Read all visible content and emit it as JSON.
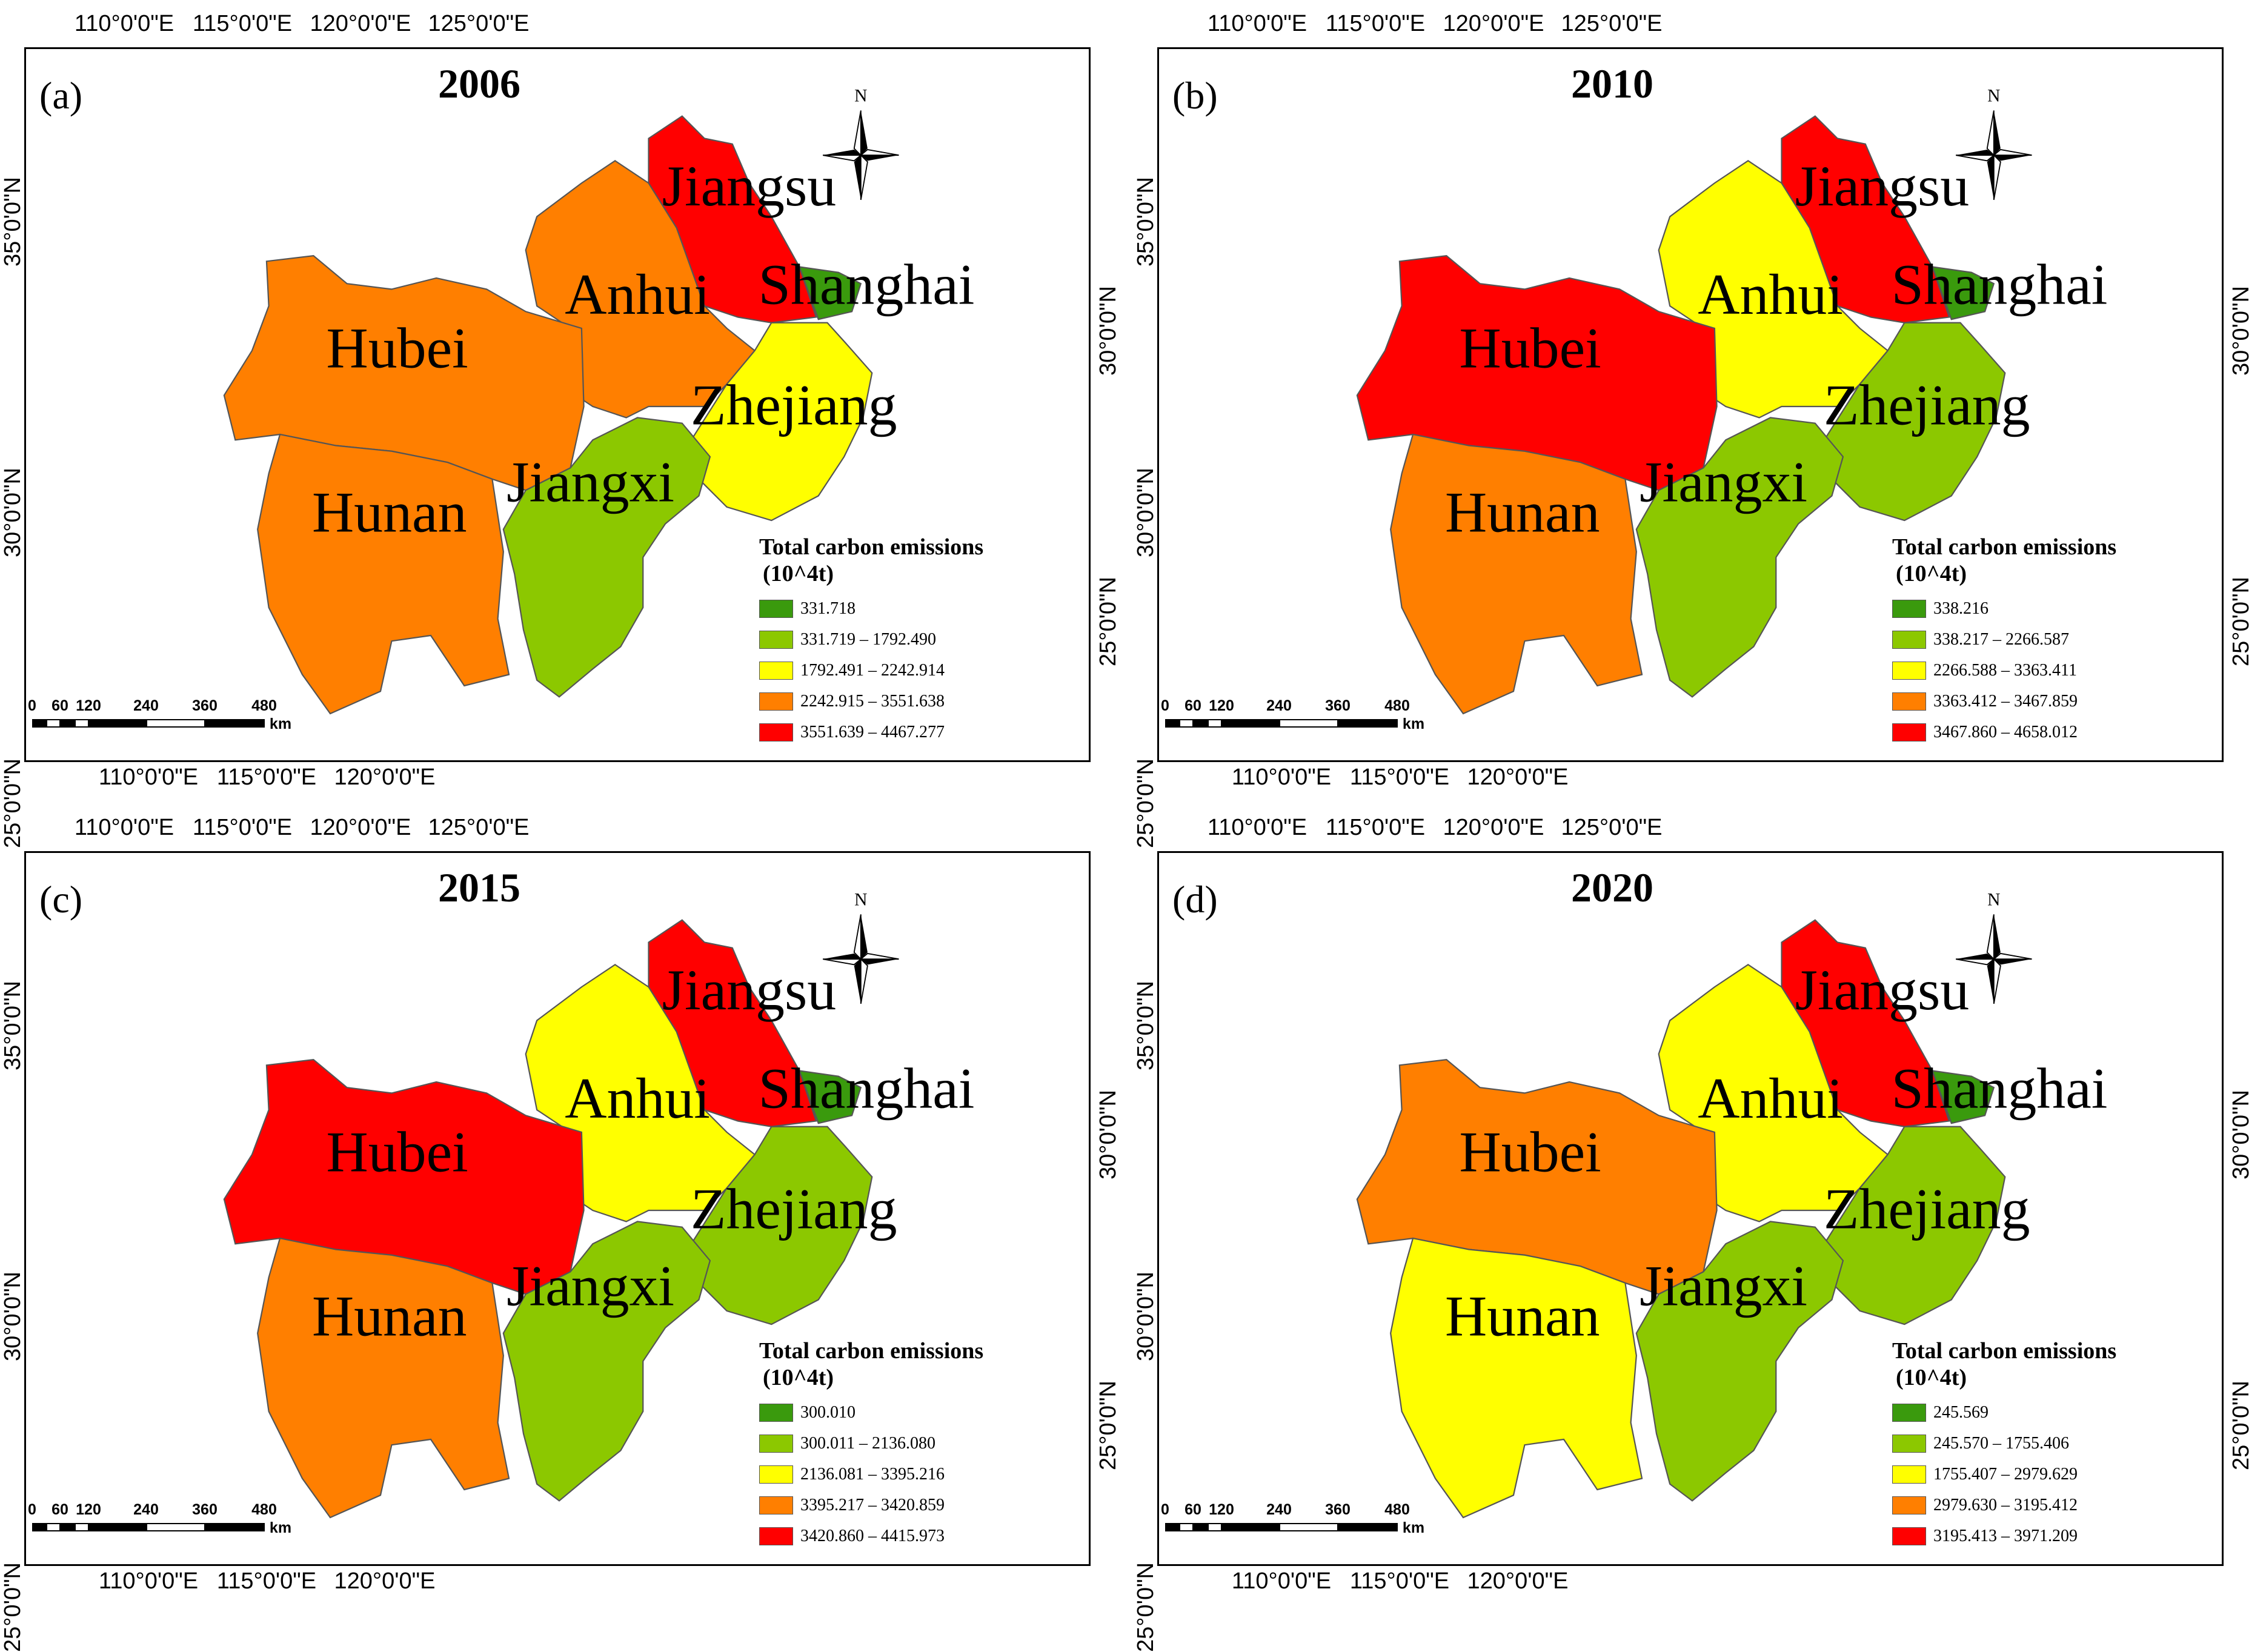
{
  "map_meta": {
    "compass_label": "N",
    "scale_labels": [
      "0",
      "60",
      "120",
      "240",
      "360",
      "480"
    ],
    "scale_unit": "km",
    "lon_ticks_top": [
      "110°0'0\"E",
      "115°0'0\"E",
      "120°0'0\"E",
      "125°0'0\"E"
    ],
    "lon_ticks_bottom": [
      "110°0'0\"E",
      "115°0'0\"E",
      "120°0'0\"E"
    ],
    "lat_ticks_left": [
      "35°0'0\"N",
      "30°0'0\"N",
      "25°0'0\"N"
    ],
    "lat_ticks_right": [
      "30°0'0\"N",
      "25°0'0\"N"
    ],
    "legend_title": "Total carbon emissions",
    "legend_unit": "(10^4t)",
    "class_colors": [
      "#3a9a0d",
      "#8cc800",
      "#ffff00",
      "#ff7f00",
      "#ff0000"
    ],
    "provinces": [
      "Jiangsu",
      "Shanghai",
      "Anhui",
      "Hubei",
      "Zhejiang",
      "Jiangxi",
      "Hunan"
    ]
  },
  "panels": [
    {
      "letter": "(a)",
      "year": "2006",
      "legend_ranges": [
        "331.718",
        "331.719 – 1792.490",
        "1792.491 – 2242.914",
        "2242.915 – 3551.638",
        "3551.639 – 4467.277"
      ],
      "province_class": {
        "Jiangsu": 4,
        "Shanghai": 0,
        "Anhui": 3,
        "Hubei": 3,
        "Zhejiang": 2,
        "Jiangxi": 1,
        "Hunan": 3
      }
    },
    {
      "letter": "(b)",
      "year": "2010",
      "legend_ranges": [
        "338.216",
        "338.217 – 2266.587",
        "2266.588 – 3363.411",
        "3363.412 – 3467.859",
        "3467.860 – 4658.012"
      ],
      "province_class": {
        "Jiangsu": 4,
        "Shanghai": 0,
        "Anhui": 2,
        "Hubei": 4,
        "Zhejiang": 1,
        "Jiangxi": 1,
        "Hunan": 3
      }
    },
    {
      "letter": "(c)",
      "year": "2015",
      "legend_ranges": [
        "300.010",
        "300.011 – 2136.080",
        "2136.081 – 3395.216",
        "3395.217 – 3420.859",
        "3420.860 – 4415.973"
      ],
      "province_class": {
        "Jiangsu": 4,
        "Shanghai": 0,
        "Anhui": 2,
        "Hubei": 4,
        "Zhejiang": 1,
        "Jiangxi": 1,
        "Hunan": 3
      }
    },
    {
      "letter": "(d)",
      "year": "2020",
      "legend_ranges": [
        "245.569",
        "245.570 – 1755.406",
        "1755.407 – 2979.629",
        "2979.630 – 3195.412",
        "3195.413 – 3971.209"
      ],
      "province_class": {
        "Jiangsu": 4,
        "Shanghai": 0,
        "Anhui": 2,
        "Hubei": 3,
        "Zhejiang": 1,
        "Jiangxi": 1,
        "Hunan": 2
      }
    }
  ]
}
